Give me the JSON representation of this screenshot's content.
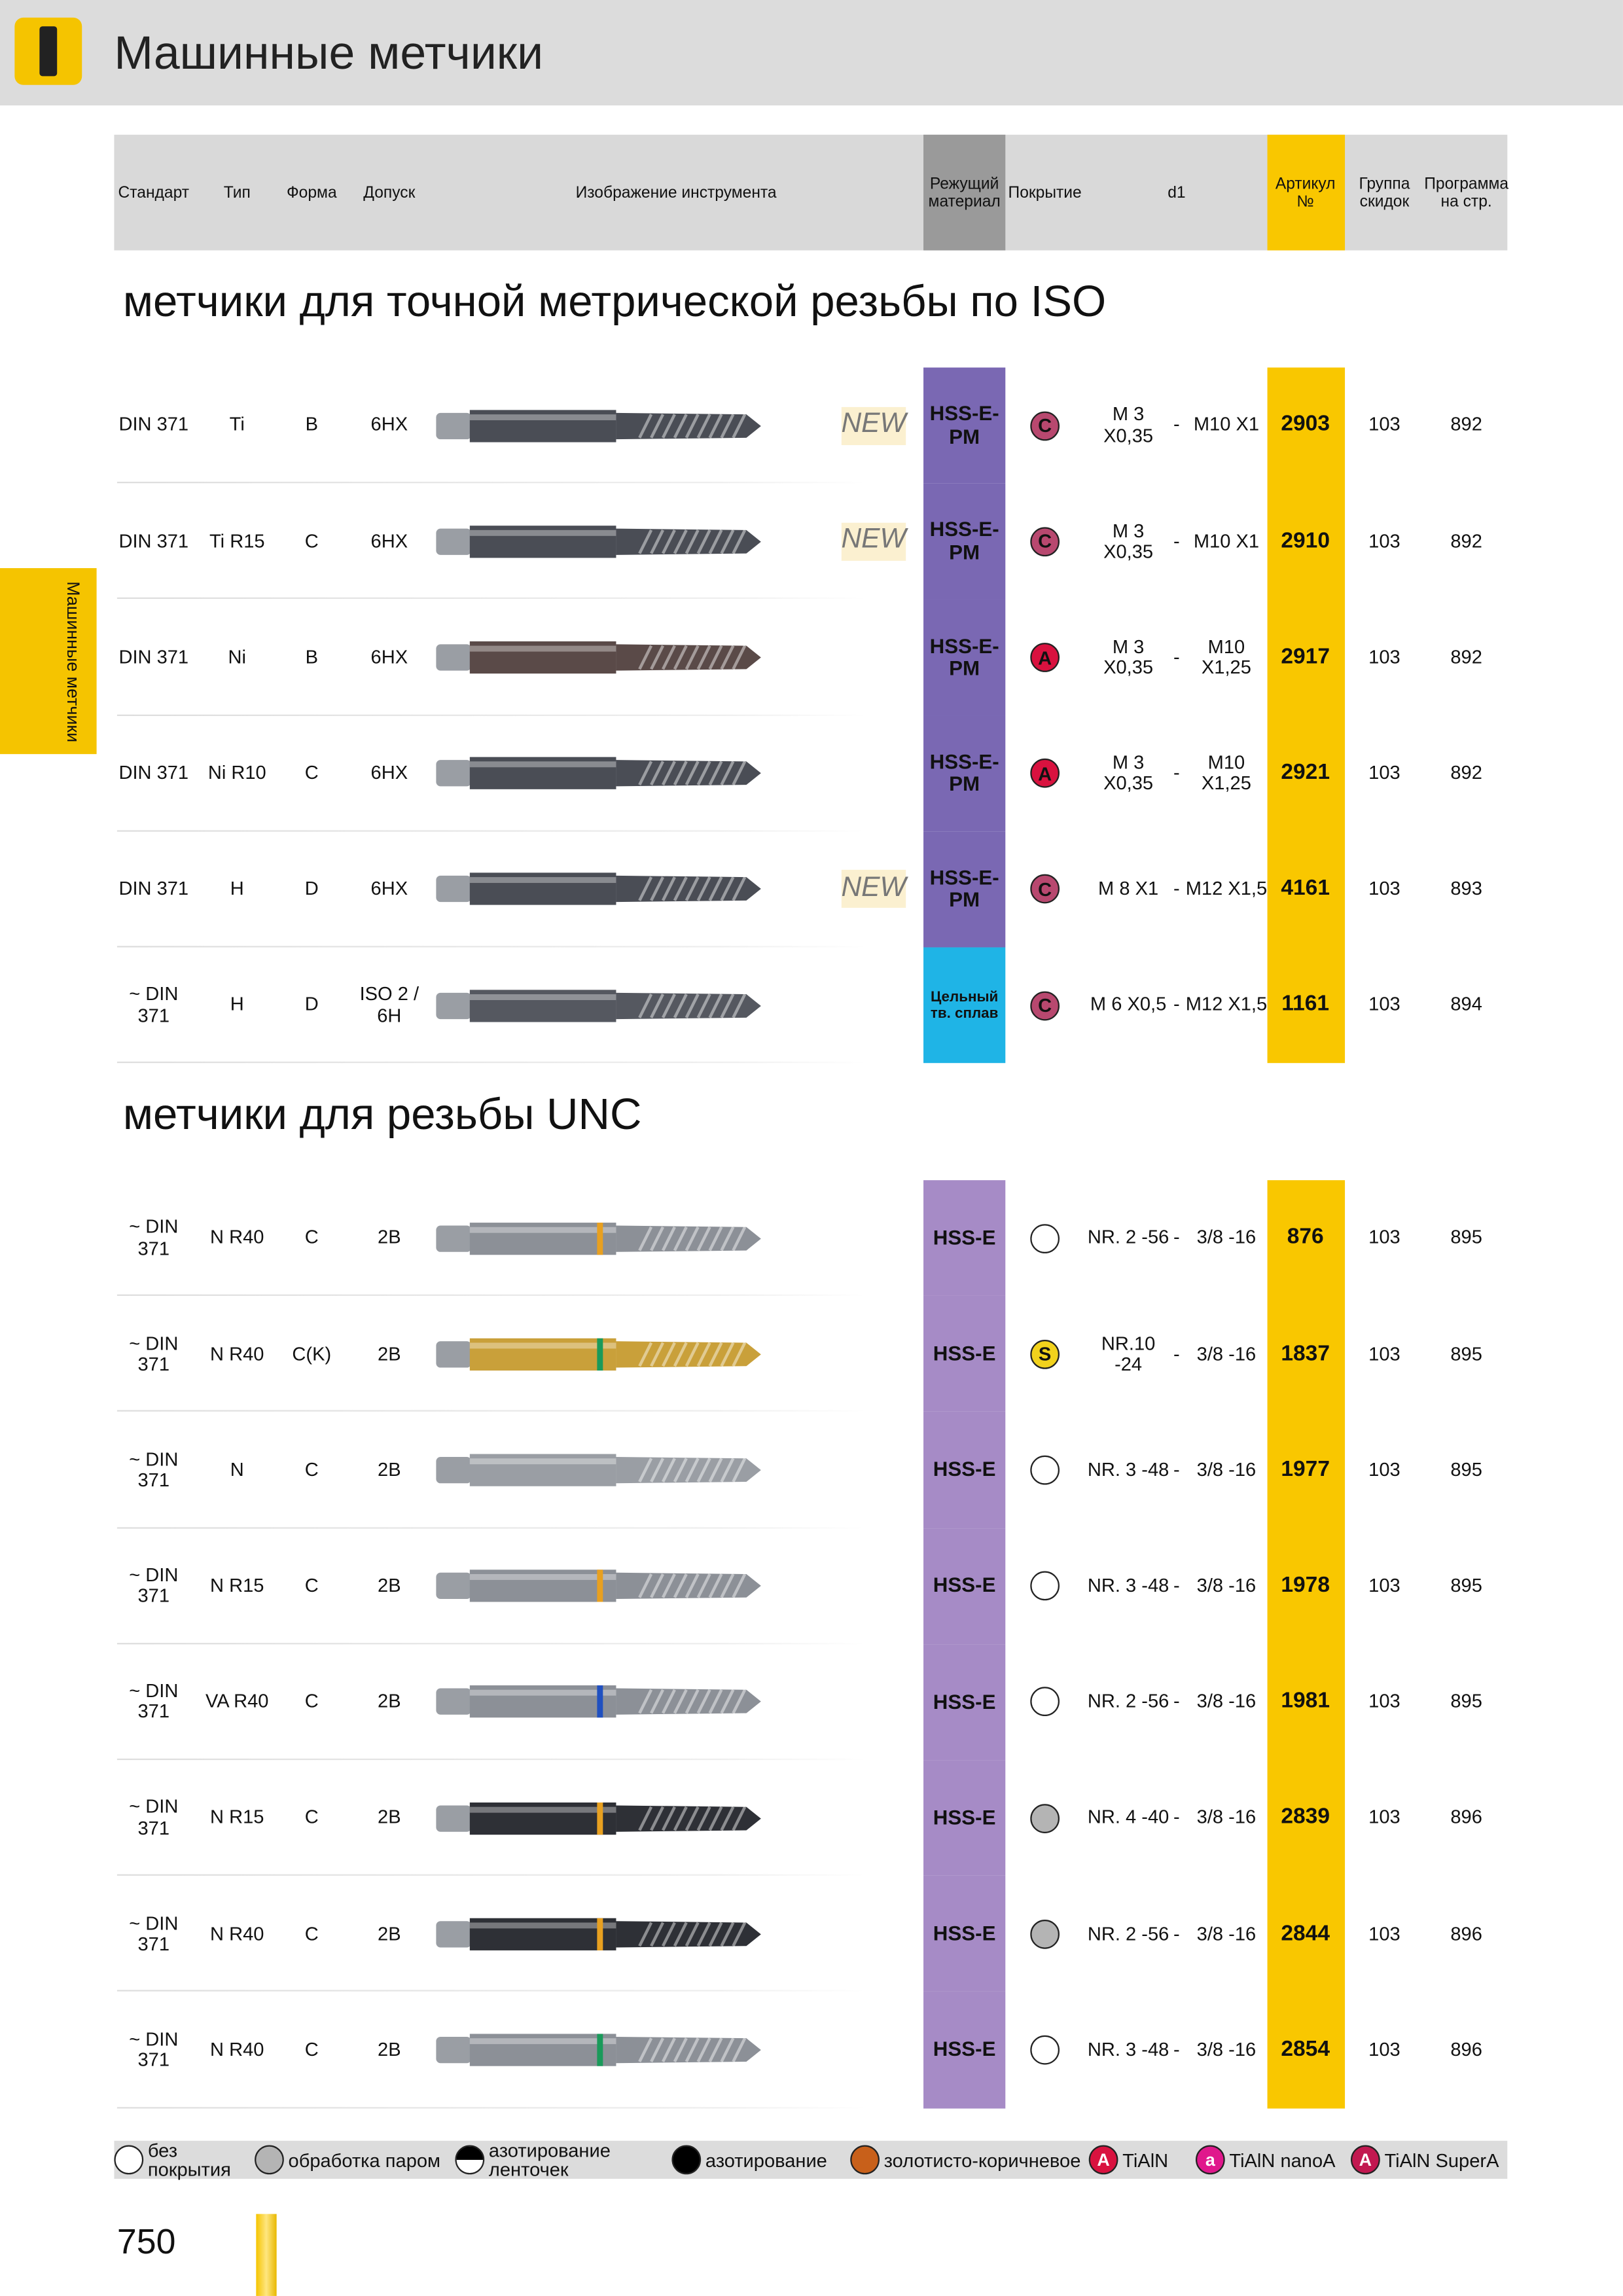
{
  "header": {
    "title": "Машинные метчики"
  },
  "side_tab": "Машинные метчики",
  "columns": [
    "Стандарт",
    "Тип",
    "Форма",
    "Допуск",
    "Изображение инструмента",
    "Режущий\nматериал",
    "Покрытие",
    "d1",
    "Артикул\n№",
    "Группа\nскидок",
    "Программа\nна стр."
  ],
  "sections": [
    {
      "title": "метчики для точной метрической резьбы по  ISO",
      "rows": [
        {
          "standard": "DIN 371",
          "type": "Ti",
          "form": "B",
          "tolerance": "6HX",
          "badge": "NEW",
          "material": "HSS-E-\nPM",
          "material_color": "#7a68b3",
          "coating": {
            "label": "C",
            "color": "#b8486f"
          },
          "d1": [
            "M 3\nX0,35",
            "-",
            "M10 X1"
          ],
          "article": "2903",
          "group": "103",
          "page": "892",
          "tool": "#4a4d55"
        },
        {
          "standard": "DIN 371",
          "type": "Ti R15",
          "form": "C",
          "tolerance": "6HX",
          "badge": "NEW",
          "material": "HSS-E-\nPM",
          "material_color": "#7a68b3",
          "coating": {
            "label": "C",
            "color": "#b8486f"
          },
          "d1": [
            "M 3\nX0,35",
            "-",
            "M10 X1"
          ],
          "article": "2910",
          "group": "103",
          "page": "892",
          "tool": "#4a4d55"
        },
        {
          "standard": "DIN 371",
          "type": "Ni",
          "form": "B",
          "tolerance": "6HX",
          "material": "HSS-E-\nPM",
          "material_color": "#7a68b3",
          "coating": {
            "label": "A",
            "color": "#d9123f"
          },
          "d1": [
            "M 3\nX0,35",
            "-",
            "M10\nX1,25"
          ],
          "article": "2917",
          "group": "103",
          "page": "892",
          "tool": "#5a4a48"
        },
        {
          "standard": "DIN 371",
          "type": "Ni R10",
          "form": "C",
          "tolerance": "6HX",
          "material": "HSS-E-\nPM",
          "material_color": "#7a68b3",
          "coating": {
            "label": "A",
            "color": "#d9123f"
          },
          "d1": [
            "M 3\nX0,35",
            "-",
            "M10\nX1,25"
          ],
          "article": "2921",
          "group": "103",
          "page": "892",
          "tool": "#4a4d55"
        },
        {
          "standard": "DIN 371",
          "type": "H",
          "form": "D",
          "tolerance": "6HX",
          "badge": "NEW",
          "material": "HSS-E-\nPM",
          "material_color": "#7a68b3",
          "coating": {
            "label": "C",
            "color": "#b8486f"
          },
          "d1": [
            "M 8 X1",
            "-",
            "M12 X1,5"
          ],
          "article": "4161",
          "group": "103",
          "page": "893",
          "tool": "#4a4d55"
        },
        {
          "standard": "~ DIN\n371",
          "type": "H",
          "form": "D",
          "tolerance": "ISO 2 /\n6H",
          "material": "Цельный\nтв. сплав",
          "material_color": "#1fb4e6",
          "coating": {
            "label": "C",
            "color": "#b8486f"
          },
          "d1": [
            "M 6 X0,5",
            "-",
            "M12 X1,5"
          ],
          "article": "1161",
          "group": "103",
          "page": "894",
          "tool": "#555860"
        }
      ]
    },
    {
      "title": "метчики для  резьбы UNC",
      "rows": [
        {
          "standard": "~ DIN\n371",
          "type": "N R40",
          "form": "C",
          "tolerance": "2B",
          "material": "HSS-E",
          "material_color": "#a68bc6",
          "coating": {
            "color": "#ffffff"
          },
          "d1": [
            "NR. 2 -56",
            "-",
            "3/8 -16"
          ],
          "article": "876",
          "group": "103",
          "page": "895",
          "tool": "#8c9097",
          "ring": "#e8a020"
        },
        {
          "standard": "~ DIN\n371",
          "type": "N R40",
          "form": "C(K)",
          "tolerance": "2B",
          "material": "HSS-E",
          "material_color": "#a68bc6",
          "coating": {
            "label": "S",
            "color": "#f2d21c"
          },
          "d1": [
            "NR.10\n-24",
            "-",
            "3/8 -16"
          ],
          "article": "1837",
          "group": "103",
          "page": "895",
          "tool": "#c9a03a",
          "ring": "#1a9a5a"
        },
        {
          "standard": "~ DIN\n371",
          "type": "N",
          "form": "C",
          "tolerance": "2B",
          "material": "HSS-E",
          "material_color": "#a68bc6",
          "coating": {
            "color": "#ffffff"
          },
          "d1": [
            "NR. 3 -48",
            "-",
            "3/8 -16"
          ],
          "article": "1977",
          "group": "103",
          "page": "895",
          "tool": "#9a9ea4"
        },
        {
          "standard": "~ DIN\n371",
          "type": "N R15",
          "form": "C",
          "tolerance": "2B",
          "material": "HSS-E",
          "material_color": "#a68bc6",
          "coating": {
            "color": "#ffffff"
          },
          "d1": [
            "NR. 3 -48",
            "-",
            "3/8 -16"
          ],
          "article": "1978",
          "group": "103",
          "page": "895",
          "tool": "#8c9097",
          "ring": "#e8a020"
        },
        {
          "standard": "~ DIN\n371",
          "type": "VA R40",
          "form": "C",
          "tolerance": "2B",
          "material": "HSS-E",
          "material_color": "#a68bc6",
          "coating": {
            "color": "#ffffff"
          },
          "d1": [
            "NR. 2 -56",
            "-",
            "3/8 -16"
          ],
          "article": "1981",
          "group": "103",
          "page": "895",
          "tool": "#8c9097",
          "ring": "#2050c0"
        },
        {
          "standard": "~ DIN\n371",
          "type": "N R15",
          "form": "C",
          "tolerance": "2B",
          "material": "HSS-E",
          "material_color": "#a68bc6",
          "coating": {
            "color": "#b4b4b4"
          },
          "d1": [
            "NR. 4 -40",
            "-",
            "3/8 -16"
          ],
          "article": "2839",
          "group": "103",
          "page": "896",
          "tool": "#2e3036",
          "ring": "#e8a020"
        },
        {
          "standard": "~ DIN\n371",
          "type": "N R40",
          "form": "C",
          "tolerance": "2B",
          "material": "HSS-E",
          "material_color": "#a68bc6",
          "coating": {
            "color": "#b4b4b4"
          },
          "d1": [
            "NR. 2 -56",
            "-",
            "3/8 -16"
          ],
          "article": "2844",
          "group": "103",
          "page": "896",
          "tool": "#2e3036",
          "ring": "#e8a020"
        },
        {
          "standard": "~ DIN\n371",
          "type": "N R40",
          "form": "C",
          "tolerance": "2B",
          "material": "HSS-E",
          "material_color": "#a68bc6",
          "coating": {
            "color": "#ffffff"
          },
          "d1": [
            "NR. 3 -48",
            "-",
            "3/8 -16"
          ],
          "article": "2854",
          "group": "103",
          "page": "896",
          "tool": "#8c9097",
          "ring": "#1a9a5a"
        }
      ]
    }
  ],
  "legend": [
    {
      "text": "без\nпокрытия",
      "color": "#ffffff"
    },
    {
      "text": "обработка паром",
      "color": "#b4b4b4"
    },
    {
      "text": "азотирование\nленточек",
      "color": "linear-gradient(#000 50%,#fff 50%)"
    },
    {
      "text": "азотирование",
      "color": "#000000"
    },
    {
      "text": "золотисто-коричневое",
      "color": "#c8601a"
    },
    {
      "label": "A",
      "text": "TiAlN",
      "color": "#d9123f"
    },
    {
      "label": "a",
      "text": "TiAlN nanoA",
      "color": "#e0188c"
    },
    {
      "label": "A",
      "text": "TiAlN SuperA",
      "color": "#c21850"
    }
  ],
  "page_number": "750"
}
